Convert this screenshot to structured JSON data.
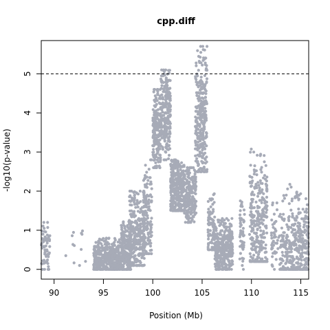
{
  "chart_data": {
    "type": "scatter",
    "title": "cpp.diff",
    "xlabel": "Position (Mb)",
    "ylabel": "-log10(p-value)",
    "xlim": [
      88.7,
      115.8
    ],
    "ylim": [
      -0.25,
      5.85
    ],
    "x_ticks": [
      90,
      95,
      100,
      105,
      110,
      115
    ],
    "y_ticks": [
      0,
      1,
      2,
      3,
      4,
      5
    ],
    "threshold": 5,
    "point_color": "#a7abb7",
    "grid": false,
    "legend": "none",
    "series": [
      {
        "clusters": [
          {
            "x_range": [
              88.7,
              89.6
            ],
            "y_range": [
              0.0,
              1.2
            ],
            "n": 60,
            "peak": 0.5
          },
          {
            "x_range": [
              91.0,
              93.2
            ],
            "y_range": [
              0.1,
              1.0
            ],
            "n": 12,
            "peak": 0.5
          },
          {
            "x_range": [
              94.0,
              96.8
            ],
            "y_range": [
              0.0,
              0.8
            ],
            "n": 420,
            "peak": 0.25
          },
          {
            "x_range": [
              96.8,
              97.8
            ],
            "y_range": [
              0.0,
              1.3
            ],
            "n": 220,
            "peak": 0.4
          },
          {
            "x_range": [
              97.6,
              99.2
            ],
            "y_range": [
              0.1,
              2.0
            ],
            "n": 300,
            "peak": 0.9
          },
          {
            "x_range": [
              99.0,
              99.9
            ],
            "y_range": [
              0.4,
              2.8
            ],
            "n": 140,
            "peak": 1.3
          },
          {
            "x_range": [
              100.0,
              100.8
            ],
            "y_range": [
              2.6,
              4.6
            ],
            "n": 200,
            "peak": 3.6
          },
          {
            "x_range": [
              100.8,
              101.8
            ],
            "y_range": [
              2.8,
              5.1
            ],
            "n": 230,
            "peak": 4.0
          },
          {
            "x_range": [
              101.8,
              103.2
            ],
            "y_range": [
              1.5,
              2.8
            ],
            "n": 320,
            "peak": 2.1
          },
          {
            "x_range": [
              103.2,
              104.4
            ],
            "y_range": [
              1.2,
              2.6
            ],
            "n": 220,
            "peak": 1.9
          },
          {
            "x_range": [
              104.3,
              105.5
            ],
            "y_range": [
              2.5,
              5.7
            ],
            "n": 320,
            "peak": 3.8
          },
          {
            "x_range": [
              105.6,
              106.3
            ],
            "y_range": [
              0.5,
              2.0
            ],
            "n": 90,
            "peak": 1.0
          },
          {
            "x_range": [
              106.3,
              108.1
            ],
            "y_range": [
              0.0,
              1.3
            ],
            "n": 340,
            "peak": 0.5
          },
          {
            "x_range": [
              108.8,
              109.3
            ],
            "y_range": [
              0.0,
              1.9
            ],
            "n": 50,
            "peak": 0.9
          },
          {
            "x_range": [
              109.8,
              111.6
            ],
            "y_range": [
              0.2,
              3.1
            ],
            "n": 300,
            "peak": 1.2
          },
          {
            "x_range": [
              112.0,
              113.0
            ],
            "y_range": [
              0.0,
              1.7
            ],
            "n": 60,
            "peak": 0.7
          },
          {
            "x_range": [
              113.0,
              115.8
            ],
            "y_range": [
              0.0,
              2.2
            ],
            "n": 360,
            "peak": 0.5
          }
        ]
      }
    ]
  }
}
